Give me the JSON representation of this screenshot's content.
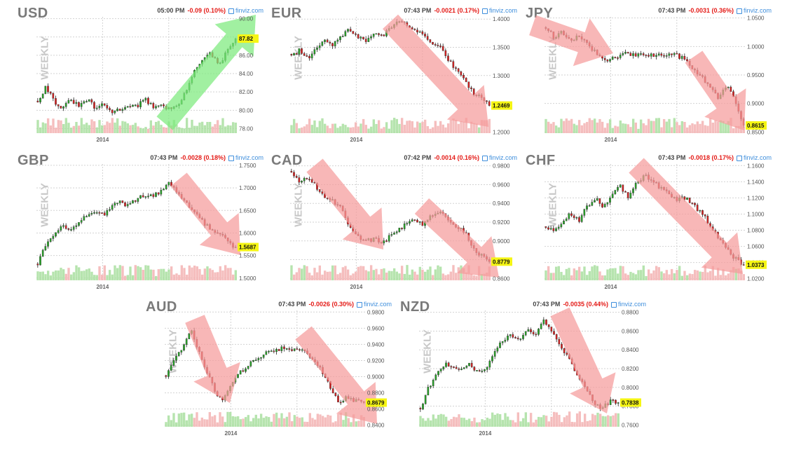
{
  "chart_data": [
    {
      "type": "candlestick",
      "symbol": "USD",
      "time": "05:00 PM",
      "change": "-0.09 (0.10%)",
      "source": "finviz.com",
      "watermark": "WEEKLY",
      "xtick": "2014",
      "ylim": [
        77.5,
        90.2
      ],
      "yticks": [
        "90.00",
        "88.00",
        "86.00",
        "84.00",
        "82.00",
        "80.00",
        "78.00"
      ],
      "ytick_values": [
        90,
        88,
        86,
        84,
        82,
        80,
        78
      ],
      "last": "87.82",
      "last_value": 87.82,
      "arrow": "up",
      "arrow_color": "#7dea7d",
      "path": [
        81,
        82.6,
        81,
        80.1,
        81.2,
        80.4,
        81.2,
        80.2,
        80.6,
        79.8,
        80.1,
        80.6,
        80.4,
        81.2,
        80.4,
        80.6,
        80.1,
        80.5,
        82,
        84.5,
        85.5,
        86.2,
        84.8,
        86.5,
        87.8
      ]
    },
    {
      "type": "candlestick",
      "symbol": "EUR",
      "time": "07:43 PM",
      "change": "-0.0021 (0.17%)",
      "source": "finviz.com",
      "watermark": "WEEKLY",
      "xtick": "2014",
      "ylim": [
        1.198,
        1.404
      ],
      "yticks": [
        "1.4000",
        "1.3500",
        "1.3000",
        "1.2500",
        "1.2000"
      ],
      "ytick_values": [
        1.4,
        1.35,
        1.3,
        1.25,
        1.2
      ],
      "last": "1.2469",
      "last_value": 1.2469,
      "arrow": "down",
      "arrow_color": "#f59b9b",
      "path": [
        1.335,
        1.345,
        1.33,
        1.35,
        1.365,
        1.355,
        1.37,
        1.38,
        1.37,
        1.36,
        1.375,
        1.37,
        1.385,
        1.395,
        1.39,
        1.38,
        1.37,
        1.36,
        1.35,
        1.33,
        1.31,
        1.29,
        1.27,
        1.26,
        1.247
      ]
    },
    {
      "type": "candlestick",
      "symbol": "JPY",
      "time": "07:43 PM",
      "change": "-0.0031 (0.36%)",
      "source": "finviz.com",
      "watermark": "WEEKLY",
      "xtick": "2014",
      "ylim": [
        0.848,
        1.052
      ],
      "yticks": [
        "1.0500",
        "1.0000",
        "0.9500",
        "0.9000",
        "0.8500"
      ],
      "ytick_values": [
        1.05,
        1.0,
        0.95,
        0.9,
        0.85
      ],
      "last": "0.8615",
      "last_value": 0.8615,
      "arrow": "down",
      "arrow_color": "#f59b9b",
      "path": [
        1.035,
        1.015,
        1.025,
        1.01,
        1.02,
        1.005,
        0.99,
        0.975,
        0.98,
        0.985,
        0.988,
        0.984,
        0.986,
        0.983,
        0.985,
        0.987,
        0.984,
        0.975,
        0.96,
        0.945,
        0.925,
        0.91,
        0.935,
        0.9,
        0.8615
      ]
    },
    {
      "type": "candlestick",
      "symbol": "GBP",
      "time": "07:43 PM",
      "change": "-0.0028 (0.18%)",
      "source": "finviz.com",
      "watermark": "WEEKLY",
      "xtick": "2014",
      "ylim": [
        1.495,
        1.753
      ],
      "yticks": [
        "1.7500",
        "1.7000",
        "1.6500",
        "1.6000",
        "1.5500",
        "1.5000"
      ],
      "ytick_values": [
        1.75,
        1.7,
        1.65,
        1.6,
        1.55,
        1.5
      ],
      "last": "1.5687",
      "last_value": 1.5687,
      "arrow": "down",
      "arrow_color": "#f59b9b",
      "path": [
        1.53,
        1.575,
        1.6,
        1.615,
        1.61,
        1.625,
        1.64,
        1.645,
        1.64,
        1.66,
        1.67,
        1.66,
        1.675,
        1.685,
        1.68,
        1.695,
        1.71,
        1.69,
        1.665,
        1.645,
        1.625,
        1.61,
        1.6,
        1.58,
        1.569
      ]
    },
    {
      "type": "candlestick",
      "symbol": "CAD",
      "time": "07:42 PM",
      "change": "-0.0014 (0.16%)",
      "source": "finviz.com",
      "watermark": "WEEKLY",
      "xtick": "2014",
      "ylim": [
        0.858,
        0.982
      ],
      "yticks": [
        "0.9800",
        "0.9600",
        "0.9400",
        "0.9200",
        "0.9000",
        "0.8800",
        "0.8600"
      ],
      "ytick_values": [
        0.98,
        0.96,
        0.94,
        0.92,
        0.9,
        0.88,
        0.86
      ],
      "last": "0.8779",
      "last_value": 0.8779,
      "arrow": "down",
      "arrow_color": "#f59b9b",
      "path": [
        0.972,
        0.962,
        0.968,
        0.958,
        0.948,
        0.942,
        0.936,
        0.915,
        0.905,
        0.9,
        0.902,
        0.898,
        0.905,
        0.912,
        0.918,
        0.922,
        0.918,
        0.928,
        0.932,
        0.922,
        0.916,
        0.91,
        0.892,
        0.885,
        0.878
      ]
    },
    {
      "type": "candlestick",
      "symbol": "CHF",
      "time": "07:43 PM",
      "change": "-0.0018 (0.17%)",
      "source": "finviz.com",
      "watermark": "WEEKLY",
      "xtick": "2014",
      "ylim": [
        1.018,
        1.162
      ],
      "yticks": [
        "1.1600",
        "1.1400",
        "1.1200",
        "1.1000",
        "1.0800",
        "1.0600",
        "1.0400",
        "1.0200"
      ],
      "ytick_values": [
        1.16,
        1.14,
        1.12,
        1.1,
        1.08,
        1.06,
        1.04,
        1.02
      ],
      "last": "1.0373",
      "last_value": 1.0373,
      "arrow": "down",
      "arrow_color": "#f59b9b",
      "path": [
        1.085,
        1.078,
        1.09,
        1.1,
        1.092,
        1.11,
        1.12,
        1.108,
        1.125,
        1.135,
        1.122,
        1.138,
        1.148,
        1.14,
        1.132,
        1.124,
        1.118,
        1.12,
        1.11,
        1.1,
        1.085,
        1.07,
        1.055,
        1.045,
        1.037
      ]
    },
    {
      "type": "candlestick",
      "symbol": "AUD",
      "time": "07:43 PM",
      "change": "-0.0026 (0.30%)",
      "source": "finviz.com",
      "watermark": "WEEKLY",
      "xtick": "2014",
      "ylim": [
        0.838,
        0.982
      ],
      "yticks": [
        "0.9800",
        "0.9600",
        "0.9400",
        "0.9200",
        "0.9000",
        "0.8800",
        "0.8600",
        "0.8400"
      ],
      "ytick_values": [
        0.98,
        0.96,
        0.94,
        0.92,
        0.9,
        0.88,
        0.86,
        0.84
      ],
      "last": "0.8679",
      "last_value": 0.8679,
      "arrow": "down",
      "arrow_color": "#f59b9b",
      "path": [
        0.9,
        0.92,
        0.935,
        0.96,
        0.93,
        0.905,
        0.88,
        0.872,
        0.89,
        0.905,
        0.915,
        0.922,
        0.928,
        0.932,
        0.935,
        0.933,
        0.936,
        0.93,
        0.92,
        0.905,
        0.885,
        0.868,
        0.875,
        0.87,
        0.868
      ]
    },
    {
      "type": "candlestick",
      "symbol": "NZD",
      "time": "07:43 PM",
      "change": "-0.0035 (0.44%)",
      "source": "finviz.com",
      "watermark": "WEEKLY",
      "xtick": "2014",
      "ylim": [
        0.758,
        0.882
      ],
      "yticks": [
        "0.8800",
        "0.8600",
        "0.8400",
        "0.8200",
        "0.8000",
        "0.7800",
        "0.7600"
      ],
      "ytick_values": [
        0.88,
        0.86,
        0.84,
        0.82,
        0.8,
        0.78,
        0.76
      ],
      "last": "0.7838",
      "last_value": 0.7838,
      "arrow": "down",
      "arrow_color": "#f59b9b",
      "path": [
        0.775,
        0.8,
        0.815,
        0.825,
        0.82,
        0.818,
        0.825,
        0.815,
        0.82,
        0.84,
        0.85,
        0.855,
        0.852,
        0.86,
        0.858,
        0.872,
        0.86,
        0.845,
        0.83,
        0.815,
        0.8,
        0.785,
        0.778,
        0.785,
        0.784
      ]
    }
  ]
}
